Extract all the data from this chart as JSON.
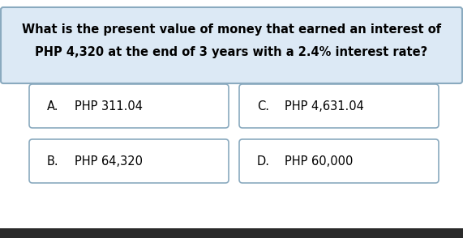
{
  "question_line1": "What is the present value of money that earned an interest of",
  "question_line2": "PHP 4,320 at the end of 3 years with a 2.4% interest rate?",
  "options": [
    {
      "label": "A.",
      "text": "PHP 311.04"
    },
    {
      "label": "C.",
      "text": "PHP 4,631.04"
    },
    {
      "label": "B.",
      "text": "PHP 64,320"
    },
    {
      "label": "D.",
      "text": "PHP 60,000"
    }
  ],
  "question_bg": "#dce9f5",
  "question_border": "#8aaabf",
  "option_bg": "#ffffff",
  "option_border": "#8aaabf",
  "overall_bg": "#ffffff",
  "bottom_bar_color": "#2a2a2a",
  "question_fontsize": 10.5,
  "option_fontsize": 10.5
}
